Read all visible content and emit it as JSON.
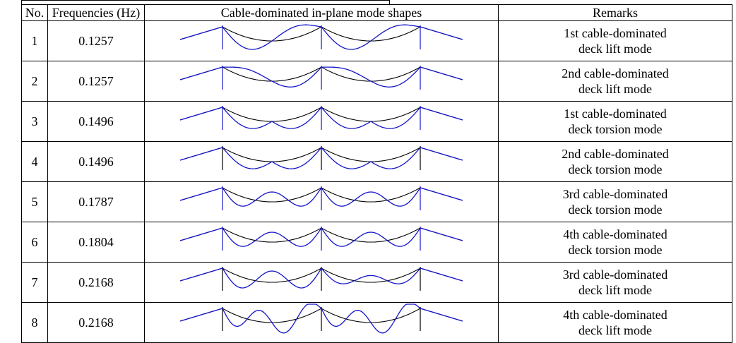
{
  "headers": {
    "no": "No.",
    "frequency": "Frequencies (Hz)",
    "shape": "Cable-dominated in-plane mode shapes",
    "remarks": "Remarks"
  },
  "rows": [
    {
      "no": "1",
      "frequency": "0.1257",
      "remark": "1st cable-dominated\ndeck lift mode",
      "shape_type": "lift-antisym-1",
      "deck_color": "#1515c8"
    },
    {
      "no": "2",
      "frequency": "0.1257",
      "remark": "2nd cable-dominated\ndeck lift mode",
      "shape_type": "lift-antisym-2",
      "deck_color": "#1515c8"
    },
    {
      "no": "3",
      "frequency": "0.1496",
      "remark": "1st cable-dominated\ndeck torsion mode",
      "shape_type": "torsion-1",
      "deck_color": "#1515c8"
    },
    {
      "no": "4",
      "frequency": "0.1496",
      "remark": "2nd cable-dominated\ndeck torsion mode",
      "shape_type": "torsion-2",
      "deck_color": "#000000"
    },
    {
      "no": "5",
      "frequency": "0.1787",
      "remark": "3rd cable-dominated\ndeck torsion mode",
      "shape_type": "torsion-3",
      "deck_color": "#1515c8"
    },
    {
      "no": "6",
      "frequency": "0.1804",
      "remark": "4th cable-dominated\ndeck torsion mode",
      "shape_type": "torsion-4",
      "deck_color": "#1515c8"
    },
    {
      "no": "7",
      "frequency": "0.2168",
      "remark": "3rd cable-dominated\ndeck lift mode",
      "shape_type": "lift-3",
      "deck_color": "#000000"
    },
    {
      "no": "8",
      "frequency": "0.2168",
      "remark": "4th cable-dominated\ndeck lift mode",
      "shape_type": "lift-4",
      "deck_color": "#000000"
    }
  ],
  "colors": {
    "mode_shape": "#1515c8",
    "reference": "#000000"
  }
}
